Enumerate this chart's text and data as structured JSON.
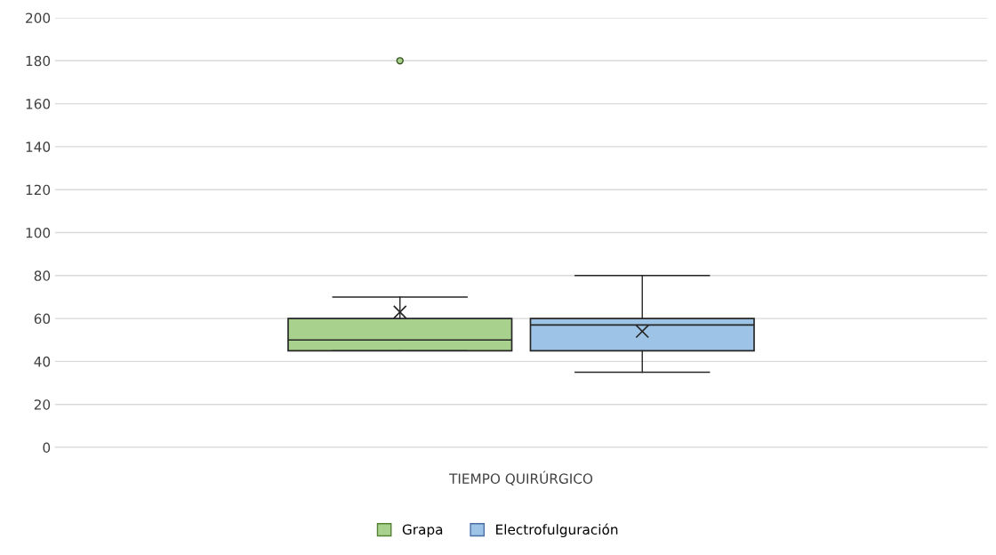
{
  "chart_data": {
    "type": "box",
    "categories": [
      "TIEMPO QUIRÚRGICO"
    ],
    "series": [
      {
        "name": "Grapa",
        "color": "#a9d18e",
        "boxes": [
          {
            "low": 45,
            "q1": 45,
            "median": 50,
            "q3": 60,
            "high": 70,
            "mean": 63,
            "outliers": [
              180
            ]
          }
        ]
      },
      {
        "name": "Electrofulguración",
        "color": "#9dc3e6",
        "boxes": [
          {
            "low": 35,
            "q1": 45,
            "median": 57,
            "q3": 60,
            "high": 80,
            "mean": 54
          }
        ]
      }
    ],
    "ylim": [
      0,
      200
    ],
    "yticks": [
      0,
      20,
      40,
      60,
      80,
      100,
      120,
      140,
      160,
      180,
      200
    ],
    "grid": "y",
    "legend": "bottom"
  }
}
